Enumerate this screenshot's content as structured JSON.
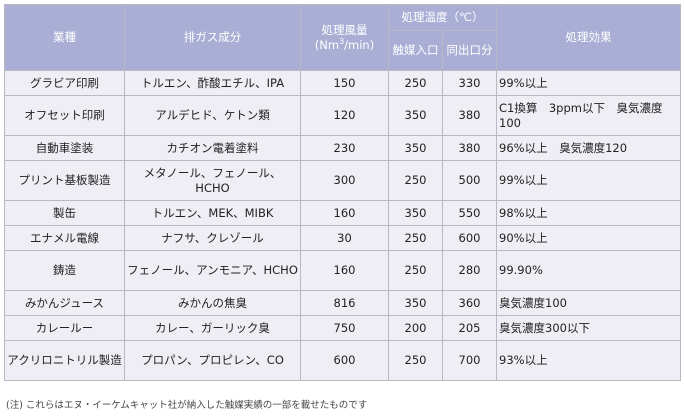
{
  "headers": {
    "industry": "業種",
    "gas": "排ガス成分",
    "flow_line1": "処理風量",
    "flow_unit_prefix": "(Nm",
    "flow_unit_sup": "3",
    "flow_unit_suffix": "/min)",
    "temp": "処理温度（℃）",
    "temp_cat": "触媒入口",
    "temp_out": "同出口分",
    "effect": "処理効果"
  },
  "rows": [
    {
      "industry": "グラビア印刷",
      "gas": "トルエン、酢酸エチル、IPA",
      "flow": "150",
      "temp_in": "250",
      "temp_out": "330",
      "effect": "99%以上"
    },
    {
      "industry": "オフセット印刷",
      "gas": "アルデヒド、ケトン類",
      "flow": "120",
      "temp_in": "350",
      "temp_out": "380",
      "effect": "C1換算　3ppm以下　臭気濃度100"
    },
    {
      "industry": "自動車塗装",
      "gas": "カチオン電着塗料",
      "flow": "230",
      "temp_in": "350",
      "temp_out": "380",
      "effect": "96%以上　臭気濃度120"
    },
    {
      "industry": "プリント基板製造",
      "gas": "メタノール、フェノール、HCHO",
      "flow": "300",
      "temp_in": "250",
      "temp_out": "500",
      "effect": "99%以上"
    },
    {
      "industry": "製缶",
      "gas": "トルエン、MEK、MIBK",
      "flow": "160",
      "temp_in": "350",
      "temp_out": "550",
      "effect": "98%以上"
    },
    {
      "industry": "エナメル電線",
      "gas": "ナフサ、クレゾール",
      "flow": "30",
      "temp_in": "250",
      "temp_out": "600",
      "effect": "90%以上"
    },
    {
      "industry": "鋳造",
      "gas": "フェノール、アンモニア、HCHO",
      "flow": "160",
      "temp_in": "250",
      "temp_out": "280",
      "effect": "99.90%"
    },
    {
      "industry": "みかんジュース",
      "gas": "みかんの焦臭",
      "flow": "816",
      "temp_in": "350",
      "temp_out": "360",
      "effect": "臭気濃度100"
    },
    {
      "industry": "カレールー",
      "gas": "カレー、ガーリック臭",
      "flow": "750",
      "temp_in": "200",
      "temp_out": "205",
      "effect": "臭気濃度300以下"
    },
    {
      "industry": "アクリロニトリル製造",
      "gas": "プロパン、プロピレン、CO",
      "flow": "600",
      "temp_in": "250",
      "temp_out": "700",
      "effect": "93%以上"
    }
  ],
  "note": "(注) これらはエヌ・イーケムキャット社が納入した触媒実績の一部を載せたものです"
}
